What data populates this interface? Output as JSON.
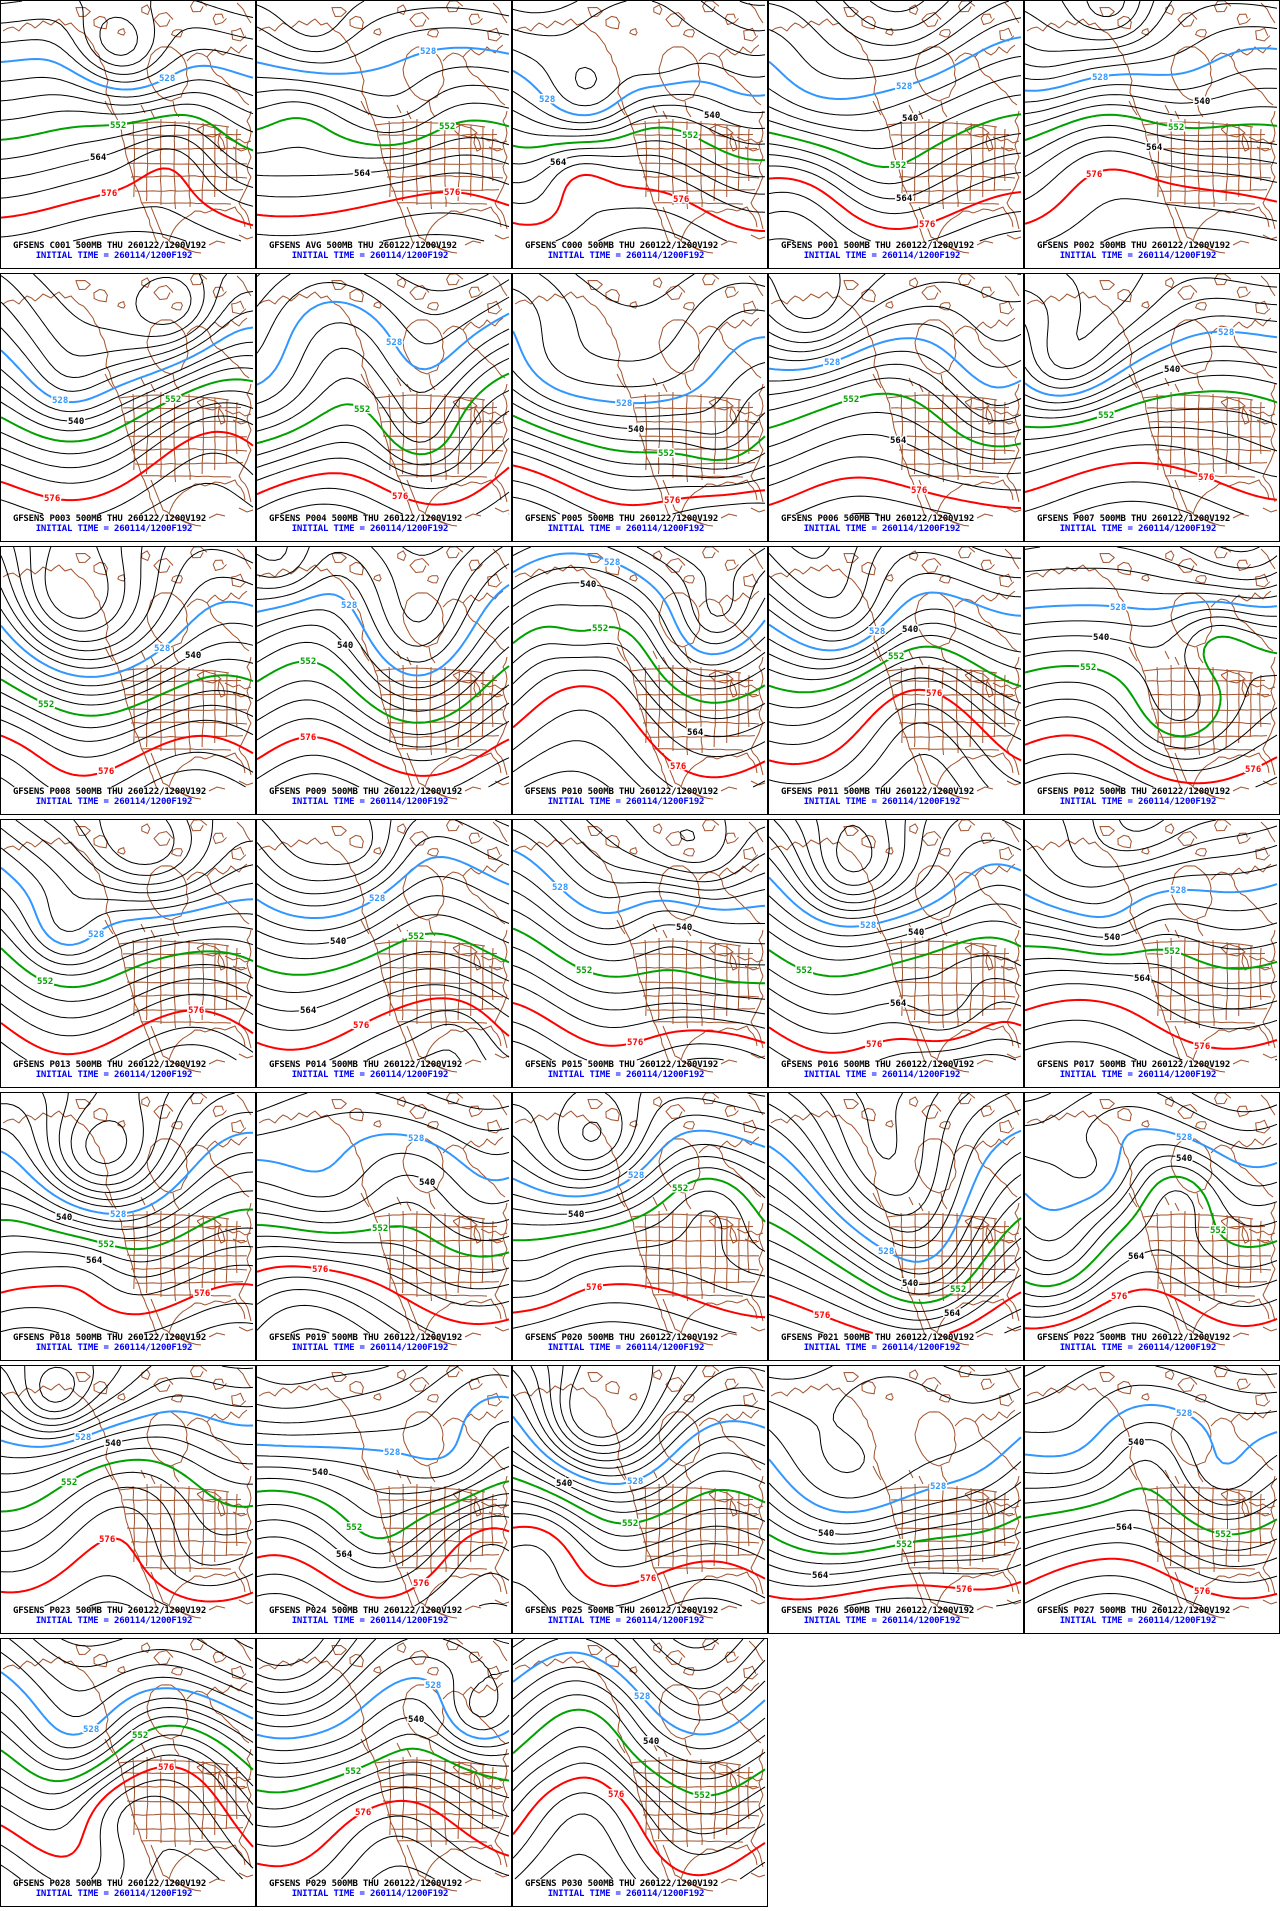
{
  "product": {
    "model": "GFSENS",
    "field_label": "500MB",
    "valid_time_label": "THU 260122/1200V192",
    "initial_time_label": "INITIAL TIME = 260114/1200F192"
  },
  "colors": {
    "background": "#ffffff",
    "frame": "#000000",
    "black_contour": "#000000",
    "geography_brown": "#a0522d",
    "green_contour": "#00a000",
    "blue_contour": "#3296ff",
    "red_contour": "#ff0000",
    "caption_black": "#000000",
    "caption_blue": "#0000ff"
  },
  "contours": {
    "interval_dam": 6,
    "blue_label": "528",
    "green_label": "552",
    "red_label": "576",
    "black_label_examples": [
      "540",
      "564"
    ]
  },
  "panels": [
    {
      "member": "C001",
      "title": "GFSENS C001 500MB THU 260122/1200V192",
      "initial_time": "INITIAL TIME = 260114/1200F192"
    },
    {
      "member": "AVG",
      "title": "GFSENS AVG 500MB THU 260122/1200V192",
      "initial_time": "INITIAL TIME = 260114/1200F192"
    },
    {
      "member": "C000",
      "title": "GFSENS C000 500MB THU 260122/1200V192",
      "initial_time": "INITIAL TIME = 260114/1200F192"
    },
    {
      "member": "P001",
      "title": "GFSENS P001 500MB THU 260122/1200V192",
      "initial_time": "INITIAL TIME = 260114/1200F192"
    },
    {
      "member": "P002",
      "title": "GFSENS P002 500MB THU 260122/1200V192",
      "initial_time": "INITIAL TIME = 260114/1200F192"
    },
    {
      "member": "P003",
      "title": "GFSENS P003 500MB THU 260122/1200V192",
      "initial_time": "INITIAL TIME = 260114/1200F192"
    },
    {
      "member": "P004",
      "title": "GFSENS P004 500MB THU 260122/1200V192",
      "initial_time": "INITIAL TIME = 260114/1200F192"
    },
    {
      "member": "P005",
      "title": "GFSENS P005 500MB THU 260122/1200V192",
      "initial_time": "INITIAL TIME = 260114/1200F192"
    },
    {
      "member": "P006",
      "title": "GFSENS P006 500MB THU 260122/1200V192",
      "initial_time": "INITIAL TIME = 260114/1200F192"
    },
    {
      "member": "P007",
      "title": "GFSENS P007 500MB THU 260122/1200V192",
      "initial_time": "INITIAL TIME = 260114/1200F192"
    },
    {
      "member": "P008",
      "title": "GFSENS P008 500MB THU 260122/1200V192",
      "initial_time": "INITIAL TIME = 260114/1200F192"
    },
    {
      "member": "P009",
      "title": "GFSENS P009 500MB THU 260122/1200V192",
      "initial_time": "INITIAL TIME = 260114/1200F192"
    },
    {
      "member": "P010",
      "title": "GFSENS P010 500MB THU 260122/1200V192",
      "initial_time": "INITIAL TIME = 260114/1200F192"
    },
    {
      "member": "P011",
      "title": "GFSENS P011 500MB THU 260122/1200V192",
      "initial_time": "INITIAL TIME = 260114/1200F192"
    },
    {
      "member": "P012",
      "title": "GFSENS P012 500MB THU 260122/1200V192",
      "initial_time": "INITIAL TIME = 260114/1200F192"
    },
    {
      "member": "P013",
      "title": "GFSENS P013 500MB THU 260122/1200V192",
      "initial_time": "INITIAL TIME = 260114/1200F192"
    },
    {
      "member": "P014",
      "title": "GFSENS P014 500MB THU 260122/1200V192",
      "initial_time": "INITIAL TIME = 260114/1200F192"
    },
    {
      "member": "P015",
      "title": "GFSENS P015 500MB THU 260122/1200V192",
      "initial_time": "INITIAL TIME = 260114/1200F192"
    },
    {
      "member": "P016",
      "title": "GFSENS P016 500MB THU 260122/1200V192",
      "initial_time": "INITIAL TIME = 260114/1200F192"
    },
    {
      "member": "P017",
      "title": "GFSENS P017 500MB THU 260122/1200V192",
      "initial_time": "INITIAL TIME = 260114/1200F192"
    },
    {
      "member": "P018",
      "title": "GFSENS P018 500MB THU 260122/1200V192",
      "initial_time": "INITIAL TIME = 260114/1200F192"
    },
    {
      "member": "P019",
      "title": "GFSENS P019 500MB THU 260122/1200V192",
      "initial_time": "INITIAL TIME = 260114/1200F192"
    },
    {
      "member": "P020",
      "title": "GFSENS P020 500MB THU 260122/1200V192",
      "initial_time": "INITIAL TIME = 260114/1200F192"
    },
    {
      "member": "P021",
      "title": "GFSENS P021 500MB THU 260122/1200V192",
      "initial_time": "INITIAL TIME = 260114/1200F192"
    },
    {
      "member": "P022",
      "title": "GFSENS P022 500MB THU 260122/1200V192",
      "initial_time": "INITIAL TIME = 260114/1200F192"
    },
    {
      "member": "P023",
      "title": "GFSENS P023 500MB THU 260122/1200V192",
      "initial_time": "INITIAL TIME = 260114/1200F192"
    },
    {
      "member": "P024",
      "title": "GFSENS P024 500MB THU 260122/1200V192",
      "initial_time": "INITIAL TIME = 260114/1200F192"
    },
    {
      "member": "P025",
      "title": "GFSENS P025 500MB THU 260122/1200V192",
      "initial_time": "INITIAL TIME = 260114/1200F192"
    },
    {
      "member": "P026",
      "title": "GFSENS P026 500MB THU 260122/1200V192",
      "initial_time": "INITIAL TIME = 260114/1200F192"
    },
    {
      "member": "P027",
      "title": "GFSENS P027 500MB THU 260122/1200V192",
      "initial_time": "INITIAL TIME = 260114/1200F192"
    },
    {
      "member": "P028",
      "title": "GFSENS P028 500MB THU 260122/1200V192",
      "initial_time": "INITIAL TIME = 260114/1200F192"
    },
    {
      "member": "P029",
      "title": "GFSENS P029 500MB THU 260122/1200V192",
      "initial_time": "INITIAL TIME = 260114/1200F192"
    },
    {
      "member": "P030",
      "title": "GFSENS P030 500MB THU 260122/1200V192",
      "initial_time": "INITIAL TIME = 260114/1200F192"
    }
  ]
}
